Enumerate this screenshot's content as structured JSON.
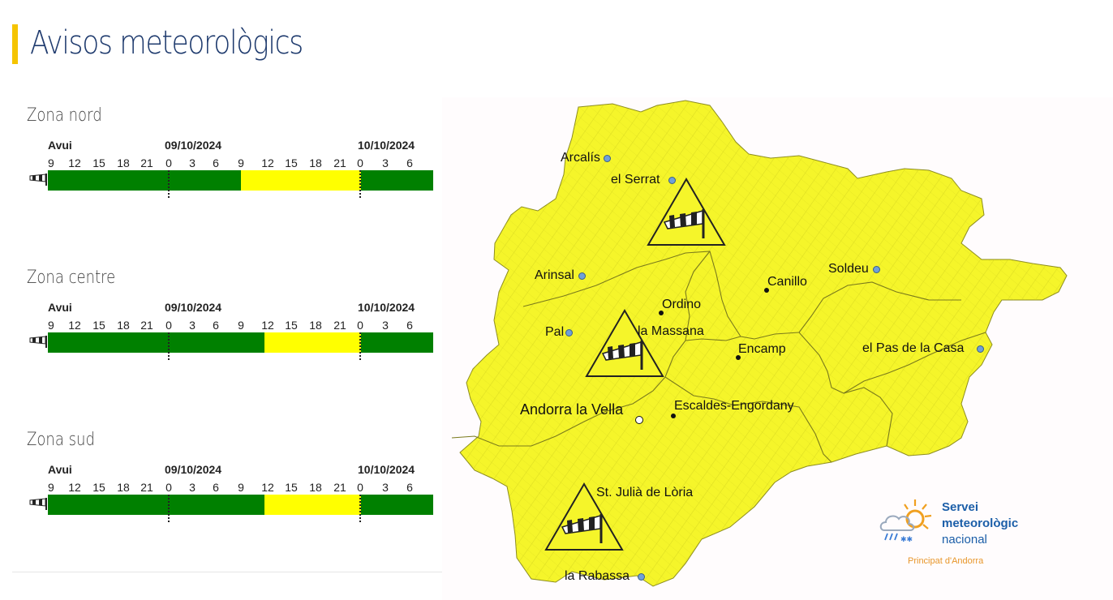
{
  "page": {
    "title": "Avisos meteorològics"
  },
  "timeline": {
    "day_labels": [
      "Avui",
      "09/10/2024",
      "10/10/2024"
    ],
    "hours": [
      "9",
      "12",
      "15",
      "18",
      "21",
      "0",
      "3",
      "6",
      "9",
      "12",
      "15",
      "18",
      "21",
      "0",
      "3",
      "6"
    ],
    "icon": "windsock-icon"
  },
  "zones": [
    {
      "name": "Zona nord",
      "segments": [
        {
          "level": "green",
          "color": "#008000",
          "span": 8
        },
        {
          "level": "yellow",
          "color": "#ffff00",
          "span": 5
        },
        {
          "level": "green",
          "color": "#008000",
          "span": 3
        }
      ]
    },
    {
      "name": "Zona centre",
      "segments": [
        {
          "level": "green",
          "color": "#008000",
          "span": 9
        },
        {
          "level": "yellow",
          "color": "#ffff00",
          "span": 4
        },
        {
          "level": "green",
          "color": "#008000",
          "span": 3
        }
      ]
    },
    {
      "name": "Zona sud",
      "segments": [
        {
          "level": "green",
          "color": "#008000",
          "span": 9
        },
        {
          "level": "yellow",
          "color": "#ffff00",
          "span": 4
        },
        {
          "level": "green",
          "color": "#008000",
          "span": 3
        }
      ]
    }
  ],
  "map": {
    "fill_color": "#f5f52a",
    "towns": {
      "arcalis": "Arcalís",
      "el_serrat": "el Serrat",
      "arinsal": "Arinsal",
      "ordino": "Ordino",
      "la_massana": "la Massana",
      "canillo": "Canillo",
      "soldeu": "Soldeu",
      "pal": "Pal",
      "encamp": "Encamp",
      "el_pas_de_la_casa": "el Pas de la Casa",
      "andorra_la_vella": "Andorra la Vella",
      "escaldes_engordany": "Escaldes-Engordany",
      "st_julia_de_loria": "St. Julià de Lòria",
      "la_rabassa": "la Rabassa"
    },
    "warning_icon": "wind-warning-icon"
  },
  "logo": {
    "line1": "Servei",
    "line2": "meteorològic",
    "line3": "nacional",
    "subtitle": "Principat d'Andorra"
  }
}
